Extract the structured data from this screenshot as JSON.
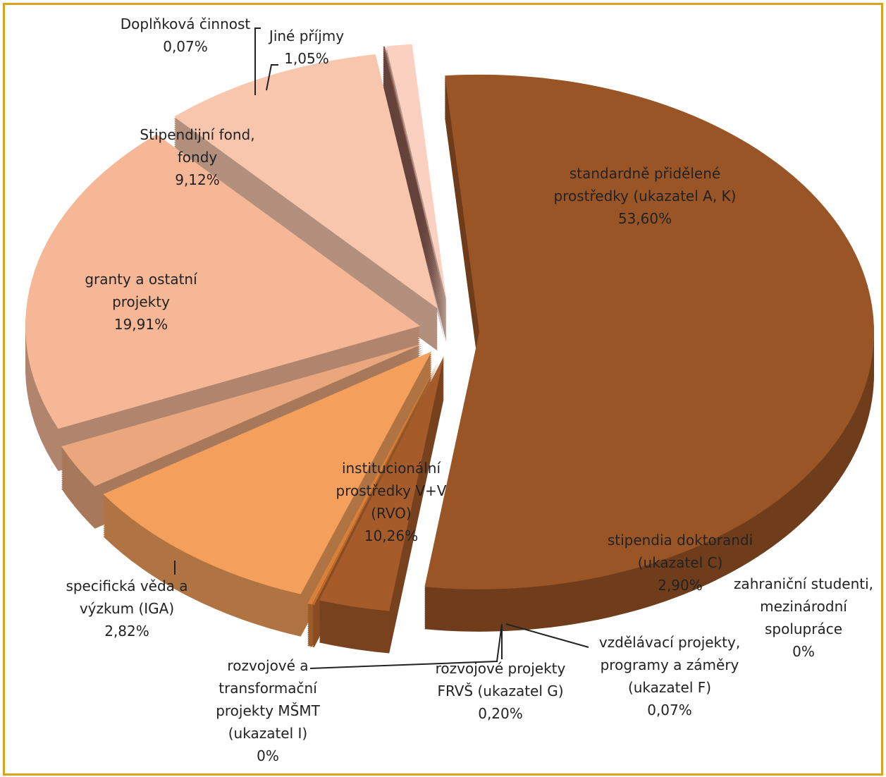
{
  "chart_data": {
    "type": "pie",
    "categories": [
      "standardně přidělené prostředky (ukazatel A, K)",
      "stipendia doktorandi (ukazatel C)",
      "zahraniční studenti, mezinárodní spolupráce",
      "vzdělávací projekty, programy a záměry (ukazatel F)",
      "rozvojové projekty FRVŠ (ukazatel G)",
      "rozvojové a transformační projekty MŠMT (ukazatel I)",
      "institucionální prostředky V+V (RVO)",
      "specifická věda a výzkum (IGA)",
      "granty a ostatní projekty",
      "Stipendijní fond, fondy",
      "Doplňková činnost",
      "Jiné příjmy"
    ],
    "values": [
      53.6,
      2.9,
      0,
      0.07,
      0.2,
      0,
      10.26,
      2.82,
      19.91,
      9.12,
      0.07,
      1.05
    ],
    "value_labels": [
      "53,60%",
      "2,90%",
      "0%",
      "0,07%",
      "0,20%",
      "0%",
      "10,26%",
      "2,82%",
      "19,91%",
      "9,12%",
      "0,07%",
      "1,05%"
    ],
    "colors": [
      "#9a5526",
      "#a65b2b",
      "#b8622c",
      "#c06a2e",
      "#d8803a",
      "#e08a45",
      "#f4a05c",
      "#eaa77d",
      "#f6b797",
      "#f8c6ad",
      "#8c5c52",
      "#fad0c0"
    ]
  }
}
